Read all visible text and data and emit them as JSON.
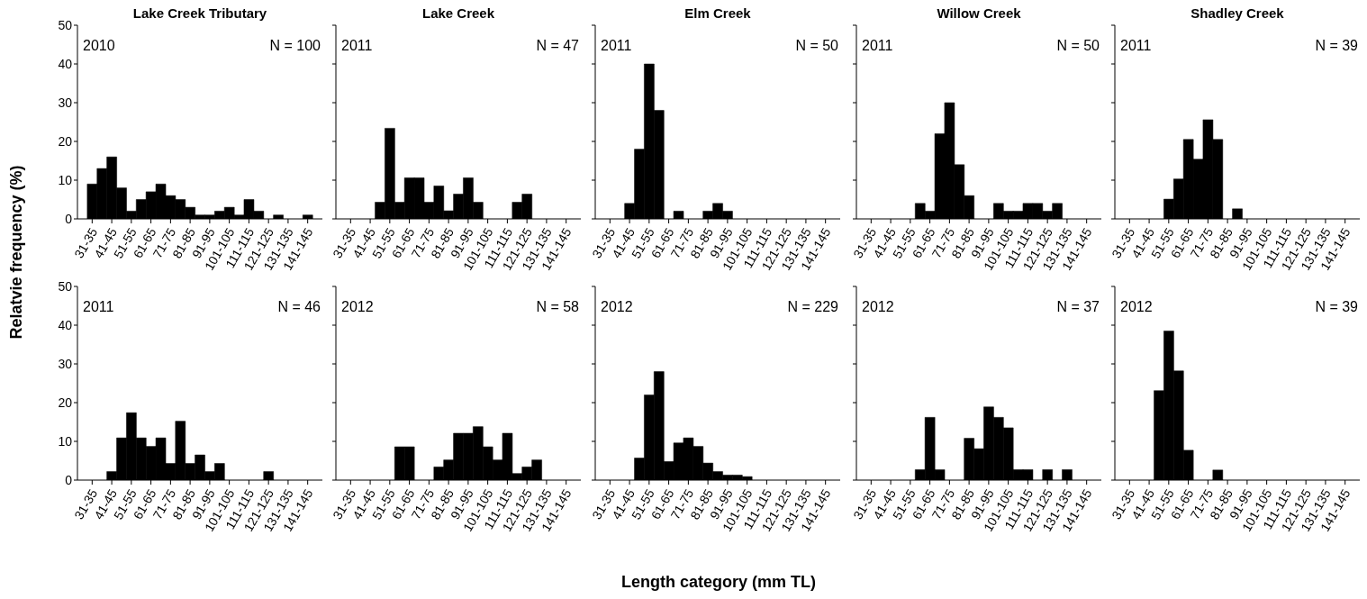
{
  "chart_data": [
    {
      "type": "bar",
      "title": "Lake Creek Tributary",
      "ylabel": "Relatvie frequency (%)",
      "annotations": [
        "2010",
        "N = 100"
      ],
      "categories": [
        null,
        "31-35",
        null,
        "41-45",
        null,
        "51-55",
        null,
        "61-65",
        null,
        "71-75",
        null,
        "81-85",
        null,
        "91-95",
        null,
        "101-105",
        null,
        "111-115",
        null,
        "121-125",
        null,
        "131-135",
        null,
        "141-145",
        null
      ],
      "values": [
        0,
        9,
        13,
        16,
        8,
        2,
        5,
        7,
        9,
        6,
        5,
        3,
        1,
        1,
        2,
        3,
        1,
        5,
        2,
        0,
        1,
        0,
        0,
        1,
        0
      ],
      "color": "#000000",
      "ylim": [
        0,
        50
      ],
      "yticks": [
        0,
        10,
        20,
        30,
        40,
        50
      ]
    },
    {
      "type": "bar",
      "title": "Lake Creek",
      "annotations": [
        "2011",
        "N = 47"
      ],
      "categories": [
        null,
        "31-35",
        null,
        "41-45",
        null,
        "51-55",
        null,
        "61-65",
        null,
        "71-75",
        null,
        "81-85",
        null,
        "91-95",
        null,
        "101-105",
        null,
        "111-115",
        null,
        "121-125",
        null,
        "131-135",
        null,
        "141-145",
        null
      ],
      "values": [
        0,
        0,
        0,
        0,
        4.3,
        23.4,
        4.3,
        10.6,
        10.6,
        4.3,
        8.5,
        2.1,
        6.4,
        10.6,
        4.3,
        0,
        0,
        0,
        4.3,
        6.4,
        0,
        0,
        0,
        0,
        0
      ],
      "color": "#000000",
      "ylim": [
        0,
        50
      ],
      "yticks": [
        0,
        10,
        20,
        30,
        40,
        50
      ],
      "tick_labels": "x"
    },
    {
      "type": "bar",
      "title": "Elm Creek",
      "annotations": [
        "2011",
        "N = 50"
      ],
      "categories": [
        null,
        "31-35",
        null,
        "41-45",
        null,
        "51-55",
        null,
        "61-65",
        null,
        "71-75",
        null,
        "81-85",
        null,
        "91-95",
        null,
        "101-105",
        null,
        "111-115",
        null,
        "121-125",
        null,
        "131-135",
        null,
        "141-145",
        null
      ],
      "values": [
        0,
        0,
        0,
        4,
        18,
        40,
        28,
        0,
        2,
        0,
        0,
        2,
        4,
        2,
        0,
        0,
        0,
        0,
        0,
        0,
        0,
        0,
        0,
        0,
        0
      ],
      "color": "#000000",
      "ylim": [
        0,
        50
      ],
      "yticks": [
        0,
        10,
        20,
        30,
        40,
        50
      ],
      "tick_labels": "x"
    },
    {
      "type": "bar",
      "title": "Willow Creek",
      "annotations": [
        "2011",
        "N = 50"
      ],
      "categories": [
        null,
        "31-35",
        null,
        "41-45",
        null,
        "51-55",
        null,
        "61-65",
        null,
        "71-75",
        null,
        "81-85",
        null,
        "91-95",
        null,
        "101-105",
        null,
        "111-115",
        null,
        "121-125",
        null,
        "131-135",
        null,
        "141-145",
        null
      ],
      "values": [
        0,
        0,
        0,
        0,
        0,
        0,
        4,
        2,
        22,
        30,
        14,
        6,
        0,
        0,
        4,
        2,
        2,
        4,
        4,
        2,
        4,
        0,
        0,
        0,
        0
      ],
      "color": "#000000",
      "ylim": [
        0,
        50
      ],
      "yticks": [
        0,
        10,
        20,
        30,
        40,
        50
      ],
      "tick_labels": "x"
    },
    {
      "type": "bar",
      "title": "Shadley Creek",
      "annotations": [
        "2011",
        "N = 39"
      ],
      "categories": [
        null,
        "31-35",
        null,
        "41-45",
        null,
        "51-55",
        null,
        "61-65",
        null,
        "71-75",
        null,
        "81-85",
        null,
        "91-95",
        null,
        "101-105",
        null,
        "111-115",
        null,
        "121-125",
        null,
        "131-135",
        null,
        "141-145",
        null
      ],
      "values": [
        0,
        0,
        0,
        0,
        0,
        5.1,
        10.3,
        20.5,
        15.4,
        25.6,
        20.5,
        0,
        2.6,
        0,
        0,
        0,
        0,
        0,
        0,
        0,
        0,
        0,
        0,
        0,
        0
      ],
      "color": "#000000",
      "ylim": [
        0,
        50
      ],
      "yticks": [
        0,
        10,
        20,
        30,
        40,
        50
      ],
      "tick_labels": "x"
    },
    {
      "type": "bar",
      "annotations": [
        "2011",
        "N = 46"
      ],
      "categories": [
        null,
        "31-35",
        null,
        "41-45",
        null,
        "51-55",
        null,
        "61-65",
        null,
        "71-75",
        null,
        "81-85",
        null,
        "91-95",
        null,
        "101-105",
        null,
        "111-115",
        null,
        "121-125",
        null,
        "131-135",
        null,
        "141-145",
        null
      ],
      "values": [
        0,
        0,
        0,
        2.2,
        10.9,
        17.4,
        10.9,
        8.7,
        10.9,
        4.3,
        15.2,
        4.3,
        6.5,
        2.2,
        4.3,
        0,
        0,
        0,
        0,
        2.2,
        0,
        0,
        0,
        0,
        0
      ],
      "color": "#000000",
      "ylim": [
        0,
        50
      ],
      "yticks": [
        0,
        10,
        20,
        30,
        40,
        50
      ]
    },
    {
      "type": "bar",
      "annotations": [
        "2012",
        "N = 58"
      ],
      "categories": [
        null,
        "31-35",
        null,
        "41-45",
        null,
        "51-55",
        null,
        "61-65",
        null,
        "71-75",
        null,
        "81-85",
        null,
        "91-95",
        null,
        "101-105",
        null,
        "111-115",
        null,
        "121-125",
        null,
        "131-135",
        null,
        "141-145",
        null
      ],
      "values": [
        0,
        0,
        0,
        0,
        0,
        0,
        8.6,
        8.6,
        0,
        0,
        3.4,
        5.2,
        12.1,
        12.1,
        13.8,
        8.6,
        5.2,
        12.1,
        1.7,
        3.4,
        5.2,
        0,
        0,
        0,
        0
      ],
      "color": "#000000",
      "ylim": [
        0,
        50
      ],
      "yticks": [
        0,
        10,
        20,
        30,
        40,
        50
      ],
      "tick_labels": "x"
    },
    {
      "type": "bar",
      "xlabel": "Length category (mm TL)",
      "annotations": [
        "2012",
        "N = 229"
      ],
      "categories": [
        null,
        "31-35",
        null,
        "41-45",
        null,
        "51-55",
        null,
        "61-65",
        null,
        "71-75",
        null,
        "81-85",
        null,
        "91-95",
        null,
        "101-105",
        null,
        "111-115",
        null,
        "121-125",
        null,
        "131-135",
        null,
        "141-145",
        null
      ],
      "values": [
        0,
        0,
        0,
        0,
        5.7,
        22,
        28,
        4.8,
        9.6,
        10.9,
        8.7,
        4.4,
        2.2,
        1.3,
        1.3,
        0.9,
        0,
        0,
        0,
        0,
        0,
        0,
        0,
        0,
        0
      ],
      "color": "#000000",
      "ylim": [
        0,
        50
      ],
      "yticks": [
        0,
        10,
        20,
        30,
        40,
        50
      ],
      "tick_labels": "x"
    },
    {
      "type": "bar",
      "annotations": [
        "2012",
        "N = 37"
      ],
      "categories": [
        null,
        "31-35",
        null,
        "41-45",
        null,
        "51-55",
        null,
        "61-65",
        null,
        "71-75",
        null,
        "81-85",
        null,
        "91-95",
        null,
        "101-105",
        null,
        "111-115",
        null,
        "121-125",
        null,
        "131-135",
        null,
        "141-145",
        null
      ],
      "values": [
        0,
        0,
        0,
        0,
        0,
        0,
        2.7,
        16.2,
        2.7,
        0,
        0,
        10.8,
        8.1,
        18.9,
        16.2,
        13.5,
        2.7,
        2.7,
        0,
        2.7,
        0,
        2.7,
        0,
        0,
        0
      ],
      "color": "#000000",
      "ylim": [
        0,
        50
      ],
      "yticks": [
        0,
        10,
        20,
        30,
        40,
        50
      ],
      "tick_labels": "x"
    },
    {
      "type": "bar",
      "annotations": [
        "2012",
        "N = 39"
      ],
      "categories": [
        null,
        "31-35",
        null,
        "41-45",
        null,
        "51-55",
        null,
        "61-65",
        null,
        "71-75",
        null,
        "81-85",
        null,
        "91-95",
        null,
        "101-105",
        null,
        "111-115",
        null,
        "121-125",
        null,
        "131-135",
        null,
        "141-145",
        null
      ],
      "values": [
        0,
        0,
        0,
        0,
        23.1,
        38.5,
        28.2,
        7.7,
        0,
        0,
        2.6,
        0,
        0,
        0,
        0,
        0,
        0,
        0,
        0,
        0,
        0,
        0,
        0,
        0,
        0
      ],
      "color": "#000000",
      "ylim": [
        0,
        50
      ],
      "yticks": [
        0,
        10,
        20,
        30,
        40,
        50
      ],
      "tick_labels": "x"
    }
  ]
}
